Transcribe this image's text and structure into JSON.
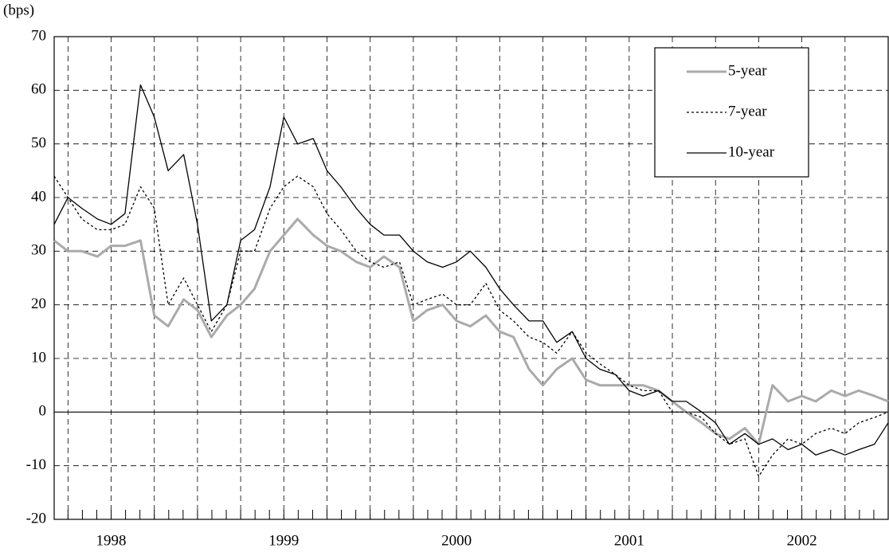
{
  "chart_data": {
    "type": "line",
    "y_label": "(bps)",
    "x": [
      1998.17,
      1998.25,
      1998.33,
      1998.42,
      1998.5,
      1998.58,
      1998.67,
      1998.75,
      1998.83,
      1998.92,
      1999.0,
      1999.08,
      1999.17,
      1999.25,
      1999.33,
      1999.42,
      1999.5,
      1999.58,
      1999.67,
      1999.75,
      1999.83,
      1999.92,
      2000.0,
      2000.08,
      2000.17,
      2000.25,
      2000.33,
      2000.42,
      2000.5,
      2000.58,
      2000.67,
      2000.75,
      2000.83,
      2000.92,
      2001.0,
      2001.08,
      2001.17,
      2001.25,
      2001.33,
      2001.42,
      2001.5,
      2001.58,
      2001.67,
      2001.75,
      2001.83,
      2001.92,
      2002.0,
      2002.08,
      2002.17,
      2002.25,
      2002.33,
      2002.42,
      2002.5,
      2002.58,
      2002.67,
      2002.75,
      2002.83,
      2002.92,
      2003.0
    ],
    "series": [
      {
        "name": "5-year",
        "color": "#aaaaaa",
        "style": "solid",
        "width": 3,
        "values": [
          32,
          30,
          30,
          29,
          31,
          31,
          32,
          18,
          16,
          21,
          19,
          14,
          18,
          20,
          23,
          30,
          33,
          36,
          33,
          31,
          30,
          28,
          27,
          29,
          27,
          17,
          19,
          20,
          17,
          16,
          18,
          15,
          14,
          8,
          5,
          8,
          10,
          6,
          5,
          5,
          5,
          5,
          4,
          2,
          0,
          -2,
          -4,
          -5,
          -3,
          -6,
          5,
          2,
          3,
          2,
          4,
          3,
          4,
          3,
          2
        ]
      },
      {
        "name": "7-year",
        "color": "#000000",
        "style": "dotted",
        "width": 1.3,
        "values": [
          44,
          40,
          36,
          34,
          34,
          35,
          42,
          38,
          20,
          25,
          20,
          15,
          20,
          30,
          30,
          38,
          42,
          44,
          42,
          37,
          34,
          30,
          28,
          27,
          28,
          20,
          21,
          22,
          20,
          20,
          24,
          19,
          17,
          14,
          13,
          11,
          15,
          11,
          9,
          7,
          5,
          4,
          4,
          0,
          0,
          -1,
          -4,
          -6,
          -5,
          -12,
          -8,
          -5,
          -6,
          -4,
          -3,
          -4,
          -2,
          -1,
          0
        ]
      },
      {
        "name": "10-year",
        "color": "#000000",
        "style": "solid",
        "width": 1.3,
        "values": [
          35,
          40,
          38,
          36,
          35,
          37,
          61,
          55,
          45,
          48,
          35,
          17,
          20,
          32,
          34,
          42,
          55,
          50,
          51,
          45,
          42,
          38,
          35,
          33,
          33,
          30,
          28,
          27,
          28,
          30,
          27,
          23,
          20,
          17,
          17,
          13,
          15,
          10,
          8,
          7,
          4,
          3,
          4,
          2,
          2,
          0,
          -2,
          -6,
          -4,
          -6,
          -5,
          -7,
          -6,
          -8,
          -7,
          -8,
          -7,
          -6,
          -2
        ]
      }
    ],
    "xlim": [
      1998.17,
      2003.0
    ],
    "xticks": [
      {
        "value": 1998.5,
        "label": "1998"
      },
      {
        "value": 1999.5,
        "label": "1999"
      },
      {
        "value": 2000.5,
        "label": "2000"
      },
      {
        "value": 2001.5,
        "label": "2001"
      },
      {
        "value": 2002.5,
        "label": "2002"
      }
    ],
    "ylim": [
      -20,
      70
    ],
    "yticks": [
      -20,
      -10,
      0,
      10,
      20,
      30,
      40,
      50,
      60,
      70
    ],
    "grid": true,
    "legend": "upper right"
  }
}
